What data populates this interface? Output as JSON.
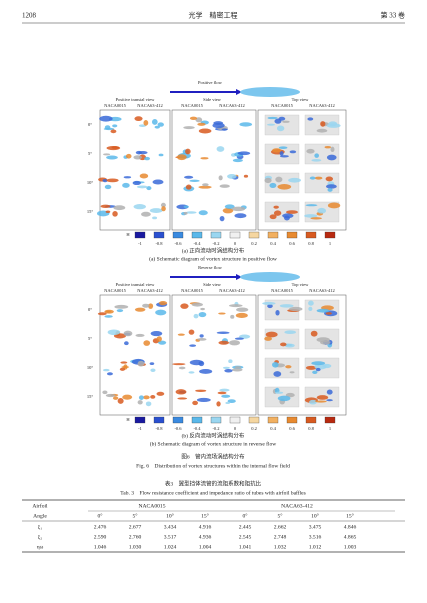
{
  "header": {
    "page": "1208",
    "journal": "光学　精密工程",
    "volume": "第 33 卷"
  },
  "figure": {
    "panels": [
      {
        "flow_label": "Positive flow",
        "views": [
          "Positive transial view",
          "Side view",
          "Top view"
        ],
        "airfoils": [
          "NACA0015",
          "NACA63-412",
          "NACA0015",
          "NACA63-412",
          "NACA0015",
          "NACA63-412"
        ],
        "angles": [
          "0°",
          "5°",
          "10°",
          "15°"
        ],
        "colorbar_title": "H",
        "colorbar_ticks": [
          -1,
          -0.8,
          -0.6,
          -0.4,
          -0.2,
          0,
          0.2,
          0.4,
          0.6,
          0.8,
          1
        ],
        "caption_cn": "(a) 正向流动时涡结构分布",
        "caption_en": "(a) Schematic diagram of vortex structure in positive flow"
      },
      {
        "flow_label": "Reverse flow",
        "views": [
          "Positive transial view",
          "Side view",
          "Top view"
        ],
        "airfoils": [
          "NACA0015",
          "NACA63-412",
          "NACA0015",
          "NACA63-412",
          "NACA0015",
          "NACA63-412"
        ],
        "angles": [
          "0°",
          "5°",
          "10°",
          "15°"
        ],
        "colorbar_title": "H",
        "colorbar_ticks": [
          -1,
          -0.8,
          -0.6,
          -0.4,
          -0.2,
          0,
          0.2,
          0.4,
          0.6,
          0.8,
          1
        ],
        "caption_cn": "(b) 反向流动时涡结构分布",
        "caption_en": "(b) Schematic diagram of vortex structure in reverse flow"
      }
    ],
    "caption_cn": "图6　管内流场涡结构分布",
    "caption_en": "Fig. 6　Distribution of vortex structures within the internal flow field"
  },
  "table": {
    "caption_cn": "表3　翼型挡体流管的流阻系数和阻抗比",
    "caption_en": "Tab. 3　Flow resistance coefficient and impedance ratio of tubes with airfoil baffles",
    "header1": [
      "Airfoil",
      "NACA0015",
      "NACA63-412"
    ],
    "header2": [
      "Angle",
      "0°",
      "5°",
      "10°",
      "15°",
      "0°",
      "5°",
      "10°",
      "15°"
    ],
    "rows": [
      [
        "ξ₁",
        "2.476",
        "2.677",
        "3.434",
        "4.916",
        "2.445",
        "2.662",
        "3.475",
        "4.846"
      ],
      [
        "ξ₂",
        "2.590",
        "2.760",
        "3.517",
        "4.936",
        "2.545",
        "2.748",
        "3.516",
        "4.865"
      ],
      [
        "ηω",
        "1.046",
        "1.030",
        "1.024",
        "1.004",
        "1.041",
        "1.032",
        "1.012",
        "1.003"
      ]
    ]
  }
}
